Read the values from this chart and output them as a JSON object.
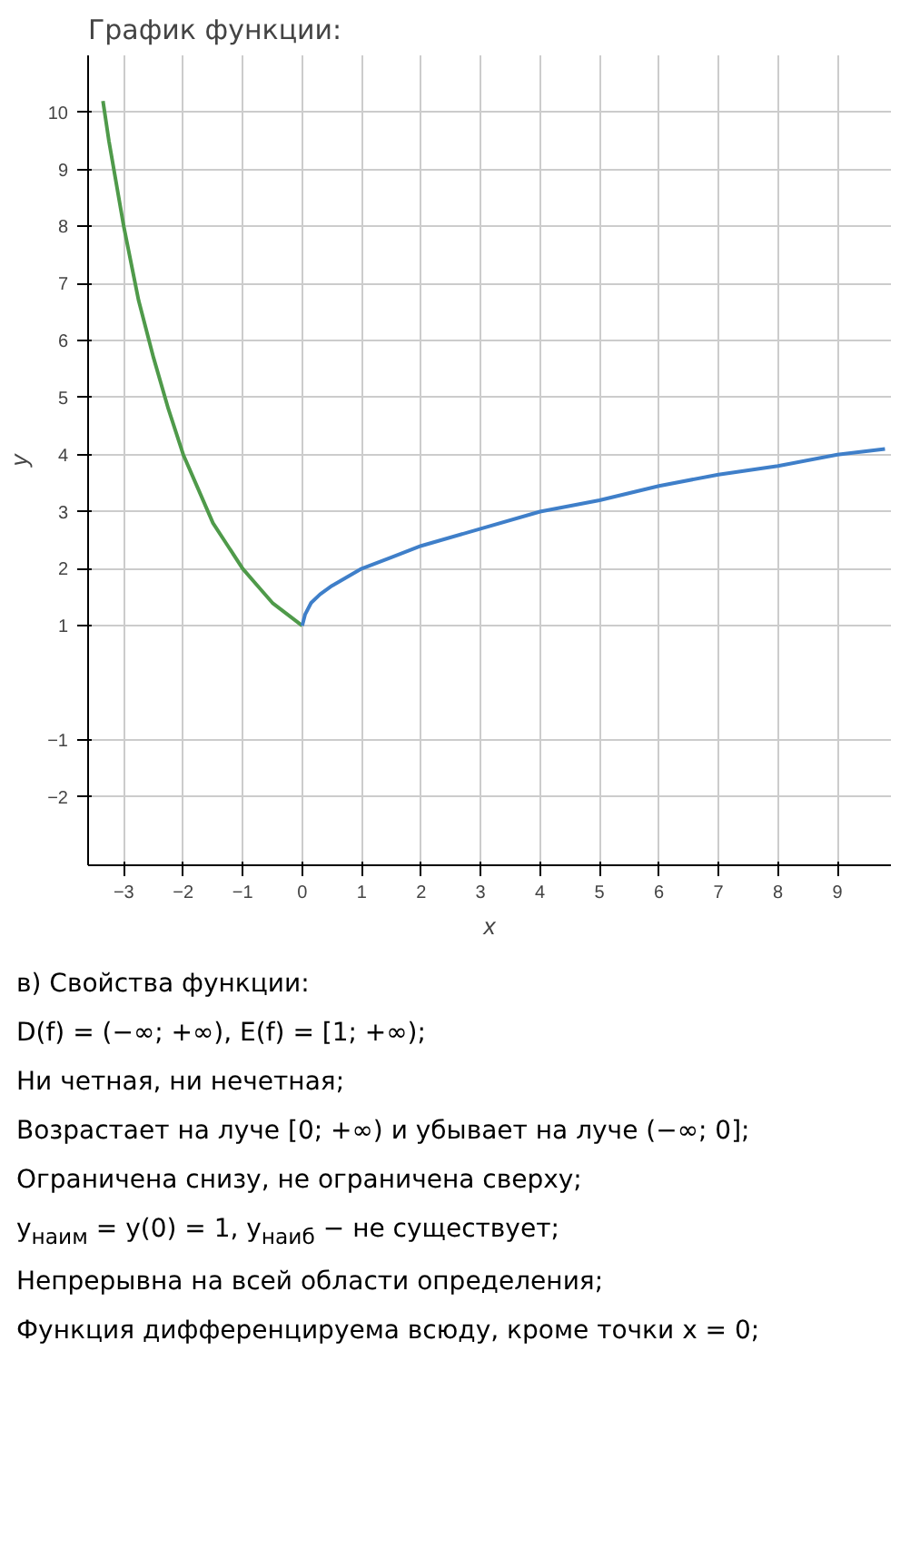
{
  "chart_data": {
    "type": "line",
    "title": "График функции:",
    "xlabel": "x",
    "ylabel": "y",
    "series": [
      {
        "color": "#4f9a4a",
        "x": [
          -3.35,
          -3.25,
          -3,
          -2.75,
          -2.5,
          -2.25,
          -2,
          -1.75,
          -1.5,
          -1.25,
          -1,
          -0.75,
          -0.5,
          -0.25,
          0
        ],
        "values": [
          10.2,
          9.5,
          8,
          6.7,
          5.7,
          4.8,
          4,
          3.4,
          2.8,
          2.4,
          2,
          1.7,
          1.4,
          1.2,
          1
        ]
      },
      {
        "color": "#3f7fc9",
        "x": [
          0,
          0.05,
          0.15,
          0.3,
          0.5,
          0.75,
          1,
          1.5,
          2,
          3,
          4,
          5,
          6,
          7,
          8,
          9,
          9.8
        ],
        "values": [
          1,
          1.2,
          1.4,
          1.55,
          1.7,
          1.85,
          2,
          2.2,
          2.4,
          2.7,
          3,
          3.2,
          3.45,
          3.65,
          3.8,
          4,
          4.1
        ]
      }
    ],
    "xlim": [
      -3.6,
      9.9
    ],
    "ylim": [
      -3.2,
      11
    ],
    "xticks": [
      -3,
      -2,
      -1,
      0,
      1,
      2,
      3,
      4,
      5,
      6,
      7,
      8,
      9
    ],
    "yticks": [
      -2,
      -1,
      1,
      2,
      3,
      4,
      5,
      6,
      7,
      8,
      9,
      10
    ],
    "grid": true,
    "line_style": "solid",
    "marker": "none",
    "annotations": [
      "в) Свойства функции:",
      "D(f) = (−∞; +∞),  E(f) = [1; +∞);",
      "Ни четная, ни нечетная;",
      "Возрастает на луче [0; +∞) и убывает на луче (−∞; 0];",
      "Ограничена снизу, не ограничена сверху;",
      "y$_{наим}$ = y(0) = 1,  y$_{наиб}$ − не существует;",
      "Непрерывна на всей области определения;",
      "Функция дифференцируема всюду, кроме точки x = 0;"
    ]
  }
}
